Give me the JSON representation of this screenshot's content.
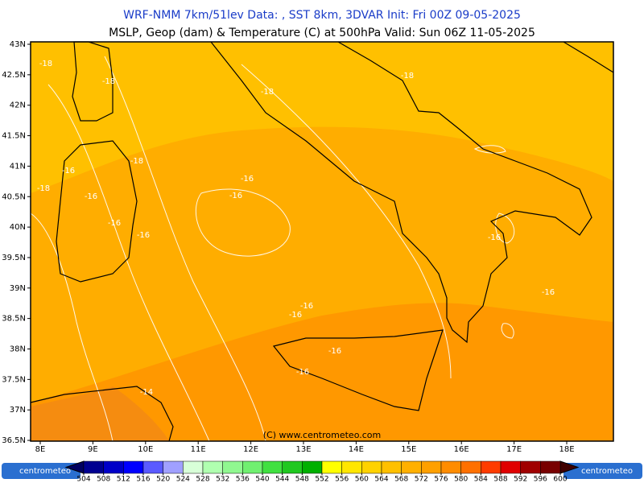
{
  "header": {
    "line1": "WRF-NMM 7km/51lev   Data: , SST 8km, 3DVAR   Init: Fri 00Z 09-05-2025",
    "line2": "MSLP, Geop (dam) & Temperature (C) at 500hPa   Valid: Sun 06Z 11-05-2025"
  },
  "map": {
    "lat_labels": [
      "43N",
      "42.5N",
      "42N",
      "41.5N",
      "41N",
      "40.5N",
      "40N",
      "39.5N",
      "39N",
      "38.5N",
      "38N",
      "37.5N",
      "37N",
      "36.5N"
    ],
    "lon_labels": [
      "8E",
      "9E",
      "10E",
      "11E",
      "12E",
      "13E",
      "14E",
      "15E",
      "16E",
      "17E",
      "18E"
    ],
    "contour_labels": [
      "-18",
      "-18",
      "-18",
      "-18",
      "-18",
      "-16",
      "-18",
      "-16",
      "-16",
      "-16",
      "-16",
      "-16",
      "-16",
      "-16",
      "-16",
      "-16",
      "-16",
      "-16",
      "-14"
    ],
    "copyright": "(C) www.centrometeo.com"
  },
  "legend": {
    "ticks": [
      504,
      508,
      512,
      516,
      520,
      524,
      528,
      532,
      536,
      540,
      544,
      548,
      552,
      556,
      560,
      564,
      568,
      572,
      576,
      580,
      584,
      588,
      592,
      596,
      600
    ],
    "colors": [
      "#000090",
      "#0000c8",
      "#0000ff",
      "#5a5aff",
      "#a0a0ff",
      "#d8ffd8",
      "#b0ffb0",
      "#90f890",
      "#70f070",
      "#40e040",
      "#20c820",
      "#00b000",
      "#ffff00",
      "#ffe600",
      "#ffd200",
      "#ffc000",
      "#ffb000",
      "#ffa000",
      "#ff8c00",
      "#ff7000",
      "#ff3c00",
      "#e00000",
      "#a00000",
      "#780000"
    ],
    "under_color": "#000060",
    "over_color": "#400000"
  },
  "logos": {
    "left": "centrometeo",
    "right": "centrometeo"
  }
}
